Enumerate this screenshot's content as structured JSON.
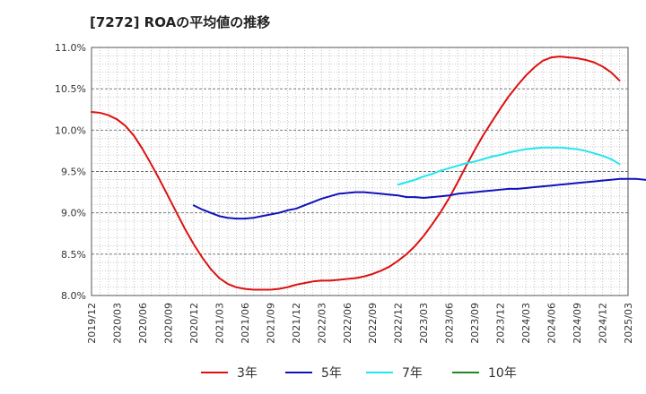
{
  "chart_data": {
    "type": "line",
    "title": "[7272]  ROAの平均値の推移",
    "xlabel": "",
    "ylabel": "",
    "ylim": [
      8.0,
      11.0
    ],
    "ytick_labels": [
      "11.0%",
      "10.5%",
      "10.0%",
      "9.5%",
      "9.0%",
      "8.5%",
      "8.0%"
    ],
    "ytick_values": [
      11.0,
      10.5,
      10.0,
      9.5,
      9.0,
      8.5,
      8.0
    ],
    "x_start": "2019/12",
    "x_end": "2025/03",
    "xtick_labels": [
      "2019/12",
      "2020/03",
      "2020/06",
      "2020/09",
      "2020/12",
      "2021/03",
      "2021/06",
      "2021/09",
      "2021/12",
      "2022/03",
      "2022/06",
      "2022/09",
      "2022/12",
      "2023/03",
      "2023/06",
      "2023/09",
      "2023/12",
      "2024/03",
      "2024/06",
      "2024/09",
      "2024/12",
      "2025/03"
    ],
    "grid": true,
    "legend_position": "bottom",
    "series": [
      {
        "name": "3年",
        "color": "#dd1111",
        "points": [
          [
            "2019/12",
            10.22
          ],
          [
            "2020/01",
            10.21
          ],
          [
            "2020/02",
            10.18
          ],
          [
            "2020/03",
            10.13
          ],
          [
            "2020/04",
            10.05
          ],
          [
            "2020/05",
            9.93
          ],
          [
            "2020/06",
            9.77
          ],
          [
            "2020/07",
            9.59
          ],
          [
            "2020/08",
            9.4
          ],
          [
            "2020/09",
            9.2
          ],
          [
            "2020/10",
            9.0
          ],
          [
            "2020/11",
            8.8
          ],
          [
            "2020/12",
            8.62
          ],
          [
            "2021/01",
            8.46
          ],
          [
            "2021/02",
            8.32
          ],
          [
            "2021/03",
            8.21
          ],
          [
            "2021/04",
            8.14
          ],
          [
            "2021/05",
            8.1
          ],
          [
            "2021/06",
            8.08
          ],
          [
            "2021/07",
            8.07
          ],
          [
            "2021/08",
            8.07
          ],
          [
            "2021/09",
            8.07
          ],
          [
            "2021/10",
            8.08
          ],
          [
            "2021/11",
            8.1
          ],
          [
            "2021/12",
            8.13
          ],
          [
            "2022/01",
            8.15
          ],
          [
            "2022/02",
            8.17
          ],
          [
            "2022/03",
            8.18
          ],
          [
            "2022/04",
            8.18
          ],
          [
            "2022/05",
            8.19
          ],
          [
            "2022/06",
            8.2
          ],
          [
            "2022/07",
            8.21
          ],
          [
            "2022/08",
            8.23
          ],
          [
            "2022/09",
            8.26
          ],
          [
            "2022/10",
            8.3
          ],
          [
            "2022/11",
            8.35
          ],
          [
            "2022/12",
            8.42
          ],
          [
            "2023/01",
            8.5
          ],
          [
            "2023/02",
            8.6
          ],
          [
            "2023/03",
            8.72
          ],
          [
            "2023/04",
            8.86
          ],
          [
            "2023/05",
            9.01
          ],
          [
            "2023/06",
            9.18
          ],
          [
            "2023/07",
            9.37
          ],
          [
            "2023/08",
            9.57
          ],
          [
            "2023/09",
            9.76
          ],
          [
            "2023/10",
            9.94
          ],
          [
            "2023/11",
            10.1
          ],
          [
            "2023/12",
            10.26
          ],
          [
            "2024/01",
            10.41
          ],
          [
            "2024/02",
            10.54
          ],
          [
            "2024/03",
            10.66
          ],
          [
            "2024/04",
            10.76
          ],
          [
            "2024/05",
            10.84
          ],
          [
            "2024/06",
            10.88
          ],
          [
            "2024/07",
            10.89
          ],
          [
            "2024/08",
            10.88
          ],
          [
            "2024/09",
            10.87
          ],
          [
            "2024/10",
            10.85
          ],
          [
            "2024/11",
            10.82
          ],
          [
            "2024/12",
            10.77
          ],
          [
            "2025/01",
            10.7
          ],
          [
            "2025/02",
            10.6
          ]
        ]
      },
      {
        "name": "5年",
        "color": "#1111bb",
        "points": [
          [
            "2020/12",
            9.09
          ],
          [
            "2021/01",
            9.04
          ],
          [
            "2021/02",
            9.0
          ],
          [
            "2021/03",
            8.96
          ],
          [
            "2021/04",
            8.94
          ],
          [
            "2021/05",
            8.93
          ],
          [
            "2021/06",
            8.93
          ],
          [
            "2021/07",
            8.94
          ],
          [
            "2021/08",
            8.96
          ],
          [
            "2021/09",
            8.98
          ],
          [
            "2021/10",
            9.0
          ],
          [
            "2021/11",
            9.03
          ],
          [
            "2021/12",
            9.05
          ],
          [
            "2022/01",
            9.09
          ],
          [
            "2022/02",
            9.13
          ],
          [
            "2022/03",
            9.17
          ],
          [
            "2022/04",
            9.2
          ],
          [
            "2022/05",
            9.23
          ],
          [
            "2022/06",
            9.24
          ],
          [
            "2022/07",
            9.25
          ],
          [
            "2022/08",
            9.25
          ],
          [
            "2022/09",
            9.24
          ],
          [
            "2022/10",
            9.23
          ],
          [
            "2022/11",
            9.22
          ],
          [
            "2022/12",
            9.21
          ],
          [
            "2023/01",
            9.19
          ],
          [
            "2023/02",
            9.19
          ],
          [
            "2023/03",
            9.18
          ],
          [
            "2023/04",
            9.19
          ],
          [
            "2023/05",
            9.2
          ],
          [
            "2023/06",
            9.21
          ],
          [
            "2023/07",
            9.23
          ],
          [
            "2023/08",
            9.24
          ],
          [
            "2023/09",
            9.25
          ],
          [
            "2023/10",
            9.26
          ],
          [
            "2023/11",
            9.27
          ],
          [
            "2023/12",
            9.28
          ],
          [
            "2024/01",
            9.29
          ],
          [
            "2024/02",
            9.29
          ],
          [
            "2024/03",
            9.3
          ],
          [
            "2024/04",
            9.31
          ],
          [
            "2024/05",
            9.32
          ],
          [
            "2024/06",
            9.33
          ],
          [
            "2024/07",
            9.34
          ],
          [
            "2024/08",
            9.35
          ],
          [
            "2024/09",
            9.36
          ],
          [
            "2024/10",
            9.37
          ],
          [
            "2024/11",
            9.38
          ],
          [
            "2024/12",
            9.39
          ],
          [
            "2025/01",
            9.4
          ],
          [
            "2025/02",
            9.41
          ],
          [
            "2025/03",
            9.41
          ],
          [
            "2025/04",
            9.41
          ],
          [
            "2025/05",
            9.4
          ],
          [
            "2025/06",
            9.39
          ]
        ]
      },
      {
        "name": "7年",
        "color": "#22e5ee",
        "points": [
          [
            "2022/12",
            9.34
          ],
          [
            "2023/01",
            9.37
          ],
          [
            "2023/02",
            9.4
          ],
          [
            "2023/03",
            9.44
          ],
          [
            "2023/04",
            9.47
          ],
          [
            "2023/05",
            9.51
          ],
          [
            "2023/06",
            9.54
          ],
          [
            "2023/07",
            9.57
          ],
          [
            "2023/08",
            9.6
          ],
          [
            "2023/09",
            9.62
          ],
          [
            "2023/10",
            9.65
          ],
          [
            "2023/11",
            9.68
          ],
          [
            "2023/12",
            9.7
          ],
          [
            "2024/01",
            9.73
          ],
          [
            "2024/02",
            9.75
          ],
          [
            "2024/03",
            9.77
          ],
          [
            "2024/04",
            9.78
          ],
          [
            "2024/05",
            9.79
          ],
          [
            "2024/06",
            9.79
          ],
          [
            "2024/07",
            9.79
          ],
          [
            "2024/08",
            9.78
          ],
          [
            "2024/09",
            9.77
          ],
          [
            "2024/10",
            9.75
          ],
          [
            "2024/11",
            9.72
          ],
          [
            "2024/12",
            9.69
          ],
          [
            "2025/01",
            9.65
          ],
          [
            "2025/02",
            9.59
          ]
        ]
      },
      {
        "name": "10年",
        "color": "#228822",
        "points": []
      }
    ]
  }
}
